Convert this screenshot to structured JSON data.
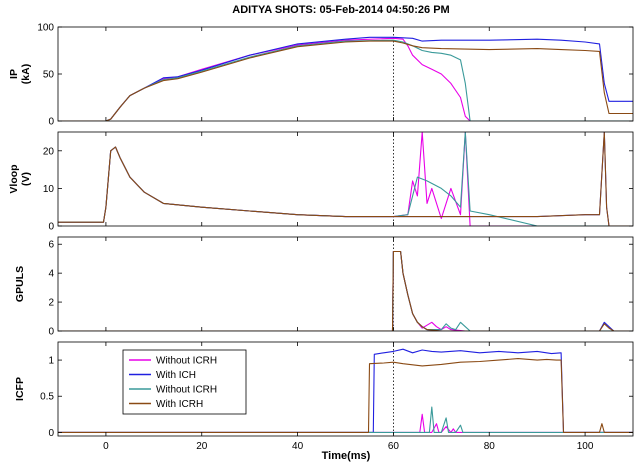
{
  "figure": {
    "title": "ADITYA SHOTS: 05-Feb-2014 04:50:26 PM",
    "xlabel": "Time(ms)"
  },
  "colors": {
    "without_icrh_1": "#e800e8",
    "with_ich": "#2020e0",
    "without_icrh_2": "#3a9a9a",
    "with_icrh": "#8a4a14",
    "axes": "#000000",
    "marker_line": "#000000"
  },
  "chart_data": [
    {
      "type": "line",
      "id": "ip",
      "ylabel_lines": [
        "IP",
        "(kA)"
      ],
      "xlim": [
        -10,
        110
      ],
      "ylim": [
        0,
        100
      ],
      "xticks": [
        0,
        20,
        40,
        60,
        80,
        100
      ],
      "yticks": [
        0,
        50,
        100
      ],
      "vline_x": 60,
      "series": [
        {
          "name": "Without ICRH",
          "color_key": "without_icrh_1",
          "x": [
            -10,
            0,
            1,
            3,
            5,
            8,
            12,
            15,
            20,
            30,
            40,
            50,
            60,
            62,
            63,
            64,
            66,
            68,
            70,
            72,
            74,
            75,
            76,
            110
          ],
          "y": [
            0,
            0,
            2,
            15,
            27,
            35,
            45,
            47,
            55,
            70,
            81,
            86,
            88,
            87,
            80,
            70,
            60,
            55,
            50,
            40,
            25,
            5,
            0,
            0
          ]
        },
        {
          "name": "With ICH",
          "color_key": "with_ich",
          "x": [
            -10,
            0,
            1,
            3,
            5,
            8,
            12,
            15,
            20,
            30,
            40,
            50,
            55,
            60,
            64,
            66,
            70,
            80,
            90,
            95,
            100,
            103,
            104,
            105,
            110
          ],
          "y": [
            0,
            0,
            2,
            15,
            27,
            35,
            46,
            47,
            54,
            70,
            82,
            87,
            89,
            89,
            88,
            85,
            86,
            86,
            87,
            86,
            84,
            82,
            40,
            21,
            21
          ]
        },
        {
          "name": "Without ICRH",
          "color_key": "without_icrh_2",
          "x": [
            -10,
            0,
            1,
            3,
            5,
            8,
            12,
            15,
            20,
            30,
            40,
            50,
            60,
            62,
            64,
            66,
            68,
            70,
            72,
            74,
            75,
            76,
            110
          ],
          "y": [
            0,
            0,
            2,
            15,
            27,
            35,
            44,
            46,
            53,
            68,
            80,
            85,
            86,
            84,
            80,
            75,
            73,
            72,
            70,
            65,
            40,
            0,
            0
          ]
        },
        {
          "name": "With ICRH",
          "color_key": "with_icrh",
          "x": [
            -10,
            0,
            1,
            3,
            5,
            8,
            12,
            15,
            20,
            30,
            40,
            50,
            55,
            60,
            62,
            64,
            66,
            70,
            80,
            90,
            95,
            100,
            103,
            104,
            105,
            110
          ],
          "y": [
            0,
            0,
            2,
            15,
            27,
            35,
            43,
            45,
            52,
            67,
            79,
            84,
            85,
            85,
            83,
            80,
            78,
            77,
            76,
            77,
            76,
            75,
            74,
            30,
            8,
            8
          ]
        }
      ]
    },
    {
      "type": "line",
      "id": "vloop",
      "ylabel_lines": [
        "Vloop",
        "(V)"
      ],
      "xlim": [
        -10,
        110
      ],
      "ylim": [
        0,
        25
      ],
      "xticks": [
        0,
        20,
        40,
        60,
        80,
        100
      ],
      "yticks": [
        0,
        10,
        20
      ],
      "vline_x": 60,
      "series": [
        {
          "name": "Without ICRH",
          "color_key": "without_icrh_1",
          "x": [
            -10,
            -0.5,
            0,
            1,
            2,
            3,
            5,
            8,
            12,
            20,
            30,
            40,
            50,
            60,
            63,
            64,
            65,
            66,
            67,
            68,
            70,
            72,
            74,
            75,
            76,
            77,
            110
          ],
          "y": [
            1,
            1,
            5,
            20,
            21,
            18,
            13,
            9,
            6,
            5,
            4,
            3,
            2.5,
            2.5,
            3,
            12,
            8,
            25,
            6,
            10,
            2,
            10,
            3,
            25,
            0,
            0,
            0
          ]
        },
        {
          "name": "With ICH",
          "color_key": "with_ich",
          "x": [
            -10,
            -0.5,
            0,
            1,
            2,
            3,
            5,
            8,
            12,
            20,
            30,
            40,
            50,
            60,
            70,
            80,
            90,
            100,
            103,
            104,
            104.5,
            105,
            106,
            110
          ],
          "y": [
            1,
            1,
            5,
            20,
            21,
            18,
            13,
            9,
            6,
            5,
            4,
            3,
            2.5,
            2.5,
            2.5,
            2.5,
            2.5,
            3,
            3,
            25,
            5,
            0,
            0,
            0
          ]
        },
        {
          "name": "Without ICRH",
          "color_key": "without_icrh_2",
          "x": [
            -10,
            -0.5,
            0,
            1,
            2,
            3,
            5,
            8,
            12,
            20,
            30,
            40,
            50,
            60,
            63,
            65,
            67,
            70,
            72,
            74,
            75,
            76,
            80,
            90,
            110
          ],
          "y": [
            1,
            1,
            5,
            20,
            21,
            18,
            13,
            9,
            6,
            5,
            4,
            3,
            2.5,
            2.5,
            3,
            13,
            12,
            10,
            8,
            5,
            25,
            4,
            3,
            0,
            0
          ]
        },
        {
          "name": "With ICRH",
          "color_key": "with_icrh",
          "x": [
            -10,
            -0.5,
            0,
            1,
            2,
            3,
            5,
            8,
            12,
            20,
            30,
            40,
            50,
            60,
            70,
            80,
            90,
            100,
            103,
            104,
            104.5,
            105,
            106,
            110
          ],
          "y": [
            1,
            1,
            5,
            20,
            21,
            18,
            13,
            9,
            6,
            5,
            4,
            3,
            2.5,
            2.5,
            2.5,
            2.5,
            2.5,
            3,
            3,
            25,
            5,
            0,
            0,
            0
          ]
        }
      ]
    },
    {
      "type": "line",
      "id": "gpuls",
      "ylabel_lines": [
        "GPULS"
      ],
      "xlim": [
        -10,
        110
      ],
      "ylim": [
        0,
        6.5
      ],
      "xticks": [
        0,
        20,
        40,
        60,
        80,
        100
      ],
      "yticks": [
        0,
        2,
        4,
        6
      ],
      "vline_x": 60,
      "series": [
        {
          "name": "Without ICRH",
          "color_key": "without_icrh_1",
          "x": [
            -10,
            59.8,
            60,
            61.5,
            62,
            63,
            64,
            65,
            66,
            67,
            68,
            69,
            70,
            71,
            72,
            75,
            110
          ],
          "y": [
            0,
            0,
            5.5,
            5.5,
            4,
            2.5,
            1.2,
            0.6,
            0.2,
            0.4,
            0.6,
            0.3,
            0.1,
            0.3,
            0.1,
            0,
            0
          ]
        },
        {
          "name": "With ICH",
          "color_key": "with_ich",
          "x": [
            -10,
            59.8,
            60,
            61.5,
            62,
            63,
            64,
            65,
            66,
            67,
            68,
            70,
            90,
            103,
            104,
            105,
            106,
            110
          ],
          "y": [
            0,
            0,
            5.5,
            5.5,
            4,
            2.5,
            1.2,
            0.6,
            0.3,
            0.1,
            0.05,
            0,
            0,
            0,
            0.6,
            0.3,
            0,
            0
          ]
        },
        {
          "name": "Without ICRH",
          "color_key": "without_icrh_2",
          "x": [
            -10,
            59.8,
            60,
            61.5,
            62,
            63,
            64,
            65,
            66,
            67,
            70,
            71,
            72,
            73,
            74,
            75,
            76,
            110
          ],
          "y": [
            0,
            0,
            5.5,
            5.5,
            4,
            2.5,
            1.2,
            0.6,
            0.3,
            0.1,
            0.1,
            0.5,
            0.2,
            0.1,
            0.6,
            0.3,
            0,
            0
          ]
        },
        {
          "name": "With ICRH",
          "color_key": "with_icrh",
          "x": [
            -10,
            59.8,
            60,
            61.5,
            62,
            63,
            64,
            65,
            66,
            67,
            70,
            103,
            104,
            105,
            106,
            110
          ],
          "y": [
            0,
            0,
            5.5,
            5.5,
            4,
            2.5,
            1.2,
            0.6,
            0.3,
            0.1,
            0,
            0,
            0.5,
            0.2,
            0,
            0
          ]
        }
      ]
    },
    {
      "type": "line",
      "id": "icfp",
      "ylabel_lines": [
        "ICFP"
      ],
      "xlim": [
        -10,
        110
      ],
      "ylim": [
        -0.05,
        1.25
      ],
      "xticks": [
        0,
        20,
        40,
        60,
        80,
        100
      ],
      "yticks": [
        0,
        0.5,
        1
      ],
      "vline_x": 60,
      "series": [
        {
          "name": "Without ICRH",
          "color_key": "without_icrh_1",
          "x": [
            -10,
            65.5,
            66,
            66.5,
            68,
            69,
            69.5,
            70,
            71,
            72,
            72.5,
            73,
            110
          ],
          "y": [
            0,
            0,
            0.25,
            0,
            0,
            0.12,
            0,
            0,
            0.08,
            0,
            0.05,
            0,
            0
          ]
        },
        {
          "name": "With ICH",
          "color_key": "with_ich",
          "x": [
            -10,
            55.8,
            56,
            58,
            60,
            62,
            64,
            66,
            68,
            70,
            74,
            78,
            82,
            86,
            90,
            93,
            95,
            95.5,
            96,
            110
          ],
          "y": [
            0,
            0,
            1.08,
            1.1,
            1.12,
            1.15,
            1.1,
            1.14,
            1.12,
            1.11,
            1.13,
            1.1,
            1.12,
            1.1,
            1.12,
            1.09,
            1.1,
            0,
            0,
            0
          ]
        },
        {
          "name": "Without ICRH",
          "color_key": "without_icrh_2",
          "x": [
            -10,
            67.5,
            68,
            68.5,
            70,
            71,
            71.5,
            73,
            74,
            74.5,
            110
          ],
          "y": [
            0,
            0,
            0.35,
            0,
            0,
            0.2,
            0,
            0,
            0.1,
            0,
            0
          ]
        },
        {
          "name": "With ICRH",
          "color_key": "with_icrh",
          "x": [
            -10,
            54.8,
            55,
            58,
            60,
            62,
            66,
            70,
            74,
            78,
            82,
            86,
            90,
            92,
            94,
            95,
            95.5,
            96,
            103,
            103.5,
            104,
            104.5,
            110
          ],
          "y": [
            0,
            0,
            0.95,
            0.96,
            0.97,
            0.95,
            0.92,
            0.94,
            0.97,
            0.98,
            1.0,
            1.02,
            1.0,
            1.01,
            1.0,
            1.0,
            0,
            0,
            0,
            0.12,
            0,
            0,
            0
          ]
        }
      ]
    }
  ],
  "legend": {
    "panel": "icfp",
    "placement": "top-left",
    "entries": [
      {
        "label": "Without ICRH",
        "color_key": "without_icrh_1"
      },
      {
        "label": "With ICH",
        "color_key": "with_ich"
      },
      {
        "label": "Without ICRH",
        "color_key": "without_icrh_2"
      },
      {
        "label": "With ICRH",
        "color_key": "with_icrh"
      }
    ]
  }
}
